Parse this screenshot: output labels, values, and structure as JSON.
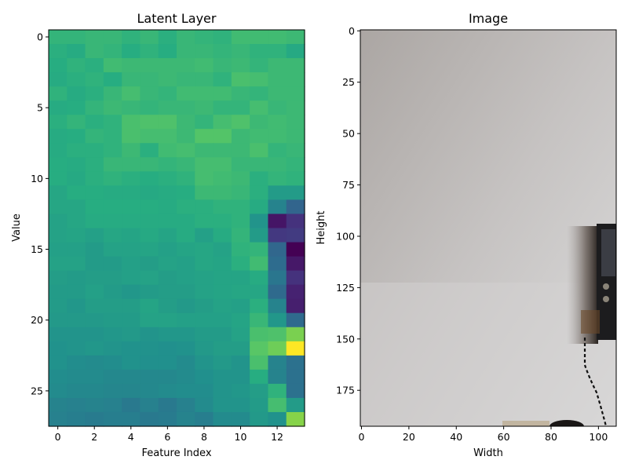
{
  "chart_data": [
    {
      "type": "heatmap",
      "title": "Latent Layer",
      "xlabel": "Feature Index",
      "ylabel": "Value",
      "colormap": "viridis",
      "rows": 28,
      "cols": 14,
      "xlim": [
        -0.5,
        13.5
      ],
      "ylim": [
        27.5,
        -0.5
      ],
      "xticks": [
        0,
        2,
        4,
        6,
        8,
        10,
        12
      ],
      "yticks": [
        0,
        5,
        10,
        15,
        20,
        25
      ],
      "values": [
        [
          0.66,
          0.66,
          0.67,
          0.67,
          0.65,
          0.67,
          0.64,
          0.67,
          0.66,
          0.65,
          0.69,
          0.69,
          0.69,
          0.68
        ],
        [
          0.64,
          0.62,
          0.67,
          0.66,
          0.63,
          0.65,
          0.63,
          0.67,
          0.67,
          0.66,
          0.67,
          0.65,
          0.65,
          0.61
        ],
        [
          0.63,
          0.65,
          0.64,
          0.69,
          0.68,
          0.68,
          0.68,
          0.68,
          0.69,
          0.67,
          0.68,
          0.66,
          0.68,
          0.68
        ],
        [
          0.62,
          0.64,
          0.65,
          0.63,
          0.67,
          0.67,
          0.68,
          0.67,
          0.67,
          0.65,
          0.71,
          0.7,
          0.68,
          0.68
        ],
        [
          0.65,
          0.62,
          0.64,
          0.67,
          0.7,
          0.67,
          0.66,
          0.69,
          0.69,
          0.69,
          0.67,
          0.66,
          0.68,
          0.68
        ],
        [
          0.62,
          0.63,
          0.66,
          0.68,
          0.67,
          0.66,
          0.67,
          0.67,
          0.68,
          0.66,
          0.66,
          0.7,
          0.67,
          0.68
        ],
        [
          0.64,
          0.66,
          0.64,
          0.65,
          0.71,
          0.72,
          0.72,
          0.68,
          0.66,
          0.7,
          0.72,
          0.68,
          0.69,
          0.68
        ],
        [
          0.62,
          0.63,
          0.66,
          0.65,
          0.71,
          0.7,
          0.7,
          0.68,
          0.73,
          0.73,
          0.68,
          0.69,
          0.69,
          0.68
        ],
        [
          0.62,
          0.64,
          0.64,
          0.65,
          0.68,
          0.64,
          0.69,
          0.7,
          0.68,
          0.68,
          0.68,
          0.71,
          0.66,
          0.67
        ],
        [
          0.63,
          0.62,
          0.64,
          0.67,
          0.67,
          0.67,
          0.66,
          0.67,
          0.7,
          0.7,
          0.67,
          0.67,
          0.67,
          0.66
        ],
        [
          0.63,
          0.61,
          0.64,
          0.65,
          0.64,
          0.63,
          0.64,
          0.65,
          0.7,
          0.69,
          0.68,
          0.64,
          0.66,
          0.65
        ],
        [
          0.6,
          0.63,
          0.63,
          0.62,
          0.62,
          0.61,
          0.62,
          0.63,
          0.68,
          0.68,
          0.67,
          0.64,
          0.55,
          0.55
        ],
        [
          0.6,
          0.6,
          0.63,
          0.63,
          0.63,
          0.63,
          0.62,
          0.64,
          0.64,
          0.65,
          0.65,
          0.62,
          0.45,
          0.33
        ],
        [
          0.58,
          0.6,
          0.62,
          0.62,
          0.62,
          0.62,
          0.62,
          0.62,
          0.64,
          0.64,
          0.65,
          0.52,
          0.06,
          0.15
        ],
        [
          0.58,
          0.59,
          0.57,
          0.6,
          0.59,
          0.61,
          0.59,
          0.62,
          0.57,
          0.62,
          0.66,
          0.55,
          0.17,
          0.18
        ],
        [
          0.57,
          0.57,
          0.55,
          0.58,
          0.58,
          0.59,
          0.57,
          0.59,
          0.6,
          0.58,
          0.65,
          0.66,
          0.34,
          0.0
        ],
        [
          0.58,
          0.58,
          0.55,
          0.55,
          0.57,
          0.56,
          0.58,
          0.57,
          0.6,
          0.59,
          0.64,
          0.69,
          0.36,
          0.07
        ],
        [
          0.56,
          0.55,
          0.56,
          0.56,
          0.57,
          0.58,
          0.56,
          0.57,
          0.58,
          0.59,
          0.59,
          0.62,
          0.4,
          0.15
        ],
        [
          0.55,
          0.55,
          0.57,
          0.55,
          0.53,
          0.55,
          0.56,
          0.56,
          0.58,
          0.59,
          0.6,
          0.6,
          0.35,
          0.1
        ],
        [
          0.55,
          0.53,
          0.56,
          0.56,
          0.56,
          0.59,
          0.56,
          0.54,
          0.56,
          0.58,
          0.57,
          0.64,
          0.45,
          0.09
        ],
        [
          0.54,
          0.54,
          0.54,
          0.55,
          0.55,
          0.58,
          0.58,
          0.57,
          0.57,
          0.57,
          0.59,
          0.67,
          0.53,
          0.35
        ],
        [
          0.52,
          0.52,
          0.52,
          0.53,
          0.54,
          0.52,
          0.53,
          0.53,
          0.55,
          0.55,
          0.58,
          0.71,
          0.72,
          0.8
        ],
        [
          0.51,
          0.52,
          0.53,
          0.52,
          0.51,
          0.51,
          0.5,
          0.51,
          0.54,
          0.56,
          0.56,
          0.74,
          0.78,
          1.0
        ],
        [
          0.51,
          0.49,
          0.48,
          0.49,
          0.51,
          0.5,
          0.5,
          0.48,
          0.52,
          0.54,
          0.52,
          0.71,
          0.45,
          0.38
        ],
        [
          0.49,
          0.48,
          0.48,
          0.47,
          0.47,
          0.47,
          0.47,
          0.48,
          0.5,
          0.52,
          0.52,
          0.63,
          0.45,
          0.38
        ],
        [
          0.48,
          0.47,
          0.47,
          0.46,
          0.46,
          0.47,
          0.48,
          0.49,
          0.49,
          0.52,
          0.53,
          0.56,
          0.65,
          0.38
        ],
        [
          0.45,
          0.44,
          0.45,
          0.44,
          0.41,
          0.44,
          0.41,
          0.44,
          0.48,
          0.52,
          0.52,
          0.55,
          0.7,
          0.55
        ],
        [
          0.44,
          0.43,
          0.42,
          0.43,
          0.43,
          0.41,
          0.42,
          0.45,
          0.43,
          0.48,
          0.48,
          0.54,
          0.51,
          0.82
        ]
      ]
    },
    {
      "type": "image",
      "title": "Image",
      "xlabel": "Width",
      "ylabel": "Height",
      "xlim": [
        -0.5,
        107.5
      ],
      "ylim": [
        192.5,
        -0.5
      ],
      "xticks": [
        0,
        20,
        40,
        60,
        80,
        100
      ],
      "yticks": [
        0,
        25,
        50,
        75,
        100,
        125,
        150,
        175
      ]
    }
  ]
}
